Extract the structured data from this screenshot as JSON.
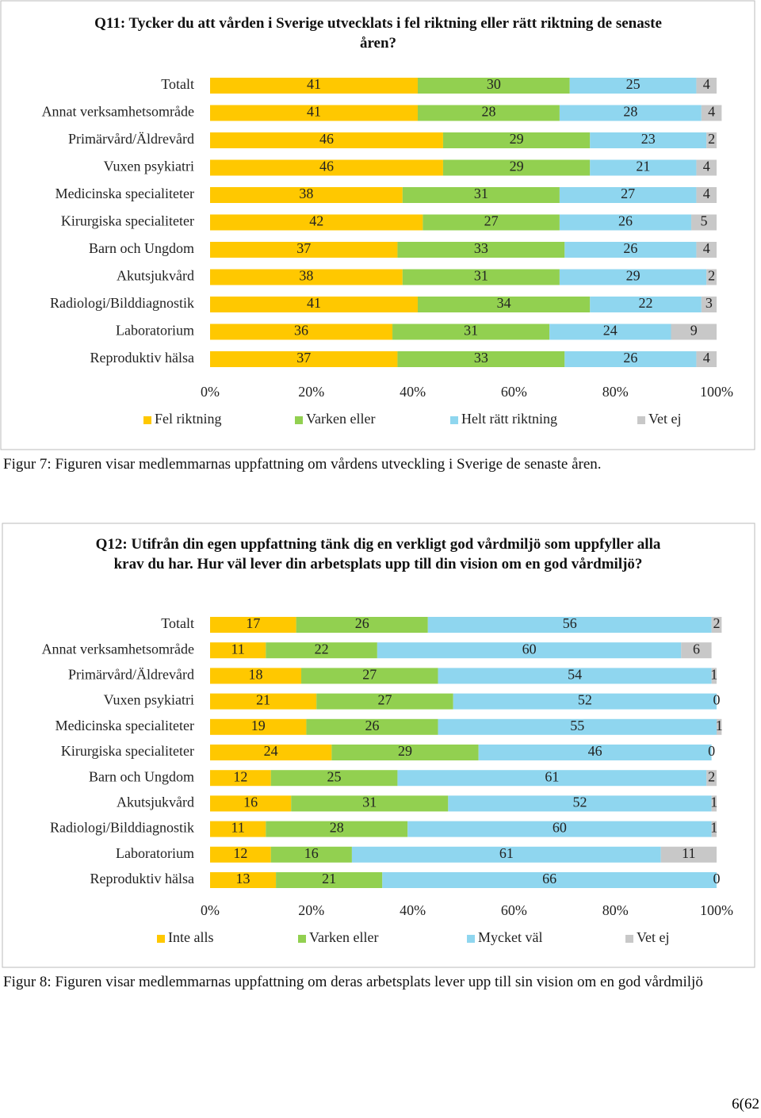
{
  "chart_data": [
    {
      "type": "bar",
      "orientation": "horizontal",
      "stacked": true,
      "title": "Q11: Tycker du att vården i Sverige utvecklats i fel riktning eller rätt riktning de senaste åren?",
      "categories": [
        "Totalt",
        "Annat verksamhetsområde",
        "Primärvård/Äldrevård",
        "Vuxen psykiatri",
        "Medicinska specialiteter",
        "Kirurgiska specialiteter",
        "Barn och Ungdom",
        "Akutsjukvård",
        "Radiologi/Bilddiagnostik",
        "Laboratorium",
        "Reproduktiv hälsa"
      ],
      "series": [
        {
          "name": "Fel riktning",
          "color": "#ffc800",
          "values": [
            41,
            41,
            46,
            46,
            38,
            42,
            37,
            38,
            41,
            36,
            37
          ]
        },
        {
          "name": "Varken eller",
          "color": "#92d050",
          "values": [
            30,
            28,
            29,
            29,
            31,
            27,
            33,
            31,
            34,
            31,
            33
          ]
        },
        {
          "name": "Helt rätt riktning",
          "color": "#8fd6ef",
          "values": [
            25,
            28,
            23,
            21,
            27,
            26,
            26,
            29,
            22,
            24,
            26
          ]
        },
        {
          "name": "Vet ej",
          "color": "#c8c8c8",
          "values": [
            4,
            4,
            2,
            4,
            4,
            5,
            4,
            2,
            3,
            9,
            4
          ]
        }
      ],
      "xlim": [
        0,
        100
      ],
      "xticks": [
        {
          "value": 0,
          "label": "0%"
        },
        {
          "value": 20,
          "label": "20%"
        },
        {
          "value": 40,
          "label": "40%"
        },
        {
          "value": 60,
          "label": "60%"
        },
        {
          "value": 80,
          "label": "80%"
        },
        {
          "value": 100,
          "label": "100%"
        }
      ],
      "legend": "bottom"
    },
    {
      "type": "bar",
      "orientation": "horizontal",
      "stacked": true,
      "title": "Q12: Utifrån din egen uppfattning tänk dig en verkligt god vårdmiljö som uppfyller alla krav du har. Hur väl lever din arbetsplats upp till din vision om en god vårdmiljö?",
      "categories": [
        "Totalt",
        "Annat verksamhetsområde",
        "Primärvård/Äldrevård",
        "Vuxen psykiatri",
        "Medicinska specialiteter",
        "Kirurgiska specialiteter",
        "Barn och Ungdom",
        "Akutsjukvård",
        "Radiologi/Bilddiagnostik",
        "Laboratorium",
        "Reproduktiv hälsa"
      ],
      "series": [
        {
          "name": "Inte alls",
          "color": "#ffc800",
          "values": [
            17,
            11,
            18,
            21,
            19,
            24,
            12,
            16,
            11,
            12,
            13
          ]
        },
        {
          "name": "Varken eller",
          "color": "#92d050",
          "values": [
            26,
            22,
            27,
            27,
            26,
            29,
            25,
            31,
            28,
            16,
            21
          ]
        },
        {
          "name": "Mycket väl",
          "color": "#8fd6ef",
          "values": [
            56,
            60,
            54,
            52,
            55,
            46,
            61,
            52,
            60,
            61,
            66
          ]
        },
        {
          "name": "Vet ej",
          "color": "#c8c8c8",
          "values": [
            2,
            6,
            1,
            0,
            1,
            0,
            2,
            1,
            1,
            11,
            0
          ]
        }
      ],
      "xlim": [
        0,
        100
      ],
      "xticks": [
        {
          "value": 0,
          "label": "0%"
        },
        {
          "value": 20,
          "label": "20%"
        },
        {
          "value": 40,
          "label": "40%"
        },
        {
          "value": 60,
          "label": "60%"
        },
        {
          "value": 80,
          "label": "80%"
        },
        {
          "value": 100,
          "label": "100%"
        }
      ],
      "legend": "bottom"
    }
  ],
  "captions": [
    "Figur 7: Figuren visar medlemmarnas uppfattning om vårdens utveckling i Sverige de senaste åren.",
    "Figur 8: Figuren visar medlemmarnas uppfattning om deras arbetsplats lever upp till sin vision om en god vårdmiljö"
  ],
  "page_number": "6(62"
}
